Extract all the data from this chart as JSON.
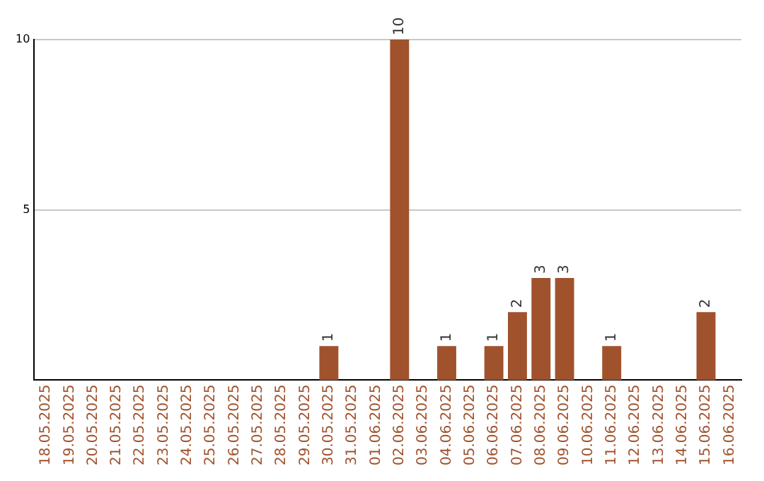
{
  "chart_data": {
    "type": "bar",
    "categories": [
      "18.05.2025",
      "19.05.2025",
      "20.05.2025",
      "21.05.2025",
      "22.05.2025",
      "23.05.2025",
      "24.05.2025",
      "25.05.2025",
      "26.05.2025",
      "27.05.2025",
      "28.05.2025",
      "29.05.2025",
      "30.05.2025",
      "31.05.2025",
      "01.06.2025",
      "02.06.2025",
      "03.06.2025",
      "04.06.2025",
      "05.06.2025",
      "06.06.2025",
      "07.06.2025",
      "08.06.2025",
      "09.06.2025",
      "10.06.2025",
      "11.06.2025",
      "12.06.2025",
      "13.06.2025",
      "14.06.2025",
      "15.06.2025",
      "16.06.2025"
    ],
    "values": [
      0,
      0,
      0,
      0,
      0,
      0,
      0,
      0,
      0,
      0,
      0,
      0,
      1,
      0,
      0,
      10,
      0,
      1,
      0,
      1,
      2,
      3,
      3,
      0,
      1,
      0,
      0,
      0,
      2,
      0
    ],
    "value_labels": [
      null,
      null,
      null,
      null,
      null,
      null,
      null,
      null,
      null,
      null,
      null,
      null,
      "1",
      null,
      null,
      "10",
      null,
      "1",
      null,
      "1",
      "2",
      "3",
      "3",
      null,
      "1",
      null,
      null,
      null,
      "2",
      null
    ],
    "color": "#a0522d",
    "ylim": [
      0,
      10
    ],
    "yticks": [
      5,
      10
    ],
    "grid": "y"
  }
}
